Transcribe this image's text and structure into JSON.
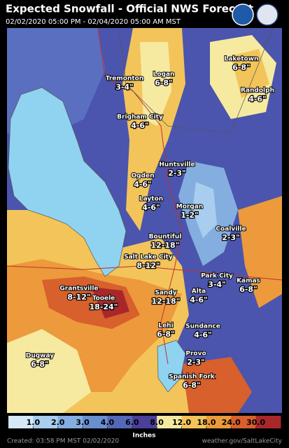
{
  "header": {
    "title": "Expected Snowfall - Official NWS Forecast",
    "subtitle": "02/02/2020 05:00 PM - 02/04/2020 05:00 AM MST"
  },
  "cities": [
    {
      "name": "Tremonton",
      "amount": "3-4\""
    },
    {
      "name": "Logan",
      "amount": "6-8\""
    },
    {
      "name": "Laketown",
      "amount": "6-8\""
    },
    {
      "name": "Randolph",
      "amount": "4-6\""
    },
    {
      "name": "Brigham City",
      "amount": "4-6\""
    },
    {
      "name": "Huntsville",
      "amount": "2-3\""
    },
    {
      "name": "Ogden",
      "amount": "4-6\""
    },
    {
      "name": "Layton",
      "amount": "4-6\""
    },
    {
      "name": "Morgan",
      "amount": "1-2\""
    },
    {
      "name": "Coalville",
      "amount": "2-3\""
    },
    {
      "name": "Bountiful",
      "amount": "12-18\""
    },
    {
      "name": "Salt Lake City",
      "amount": "8-12\""
    },
    {
      "name": "Park City",
      "amount": "3-4\""
    },
    {
      "name": "Kamas",
      "amount": "6-8\""
    },
    {
      "name": "Grantsville",
      "amount": "8-12\""
    },
    {
      "name": "Tooele",
      "amount": "18-24\""
    },
    {
      "name": "Sandy",
      "amount": "12-18\""
    },
    {
      "name": "Alta",
      "amount": "4-6\""
    },
    {
      "name": "Sundance",
      "amount": "4-6\""
    },
    {
      "name": "Lehi",
      "amount": "6-8\""
    },
    {
      "name": "Provo",
      "amount": "2-3\""
    },
    {
      "name": "Spanish Fork",
      "amount": "6-8\""
    },
    {
      "name": "Dugway",
      "amount": "6-8\""
    }
  ],
  "legend": {
    "title": "Inches",
    "colors": [
      "#d4e8f6",
      "#a9cdee",
      "#84aedf",
      "#6a8fcf",
      "#5468b8",
      "#4a3f9a",
      "#f6eaa0",
      "#f3c45a",
      "#ec9a3c",
      "#d7602c",
      "#a8282a"
    ],
    "ticks": [
      {
        "value": 1,
        "label": "1.0"
      },
      {
        "value": 2,
        "label": "2.0"
      },
      {
        "value": 3,
        "label": "3.0"
      },
      {
        "value": 4,
        "label": "4.0"
      },
      {
        "value": 6,
        "label": "6.0"
      },
      {
        "value": 8,
        "label": "8.0"
      },
      {
        "value": 12,
        "label": "12.0"
      },
      {
        "value": 18,
        "label": "18.0"
      },
      {
        "value": 24,
        "label": "24.0"
      },
      {
        "value": 30,
        "label": "30.0"
      }
    ]
  },
  "footer": {
    "created": "Created: 03:58 PM MST 02/02/2020",
    "url": "weather.gov/SaltLakeCity"
  }
}
